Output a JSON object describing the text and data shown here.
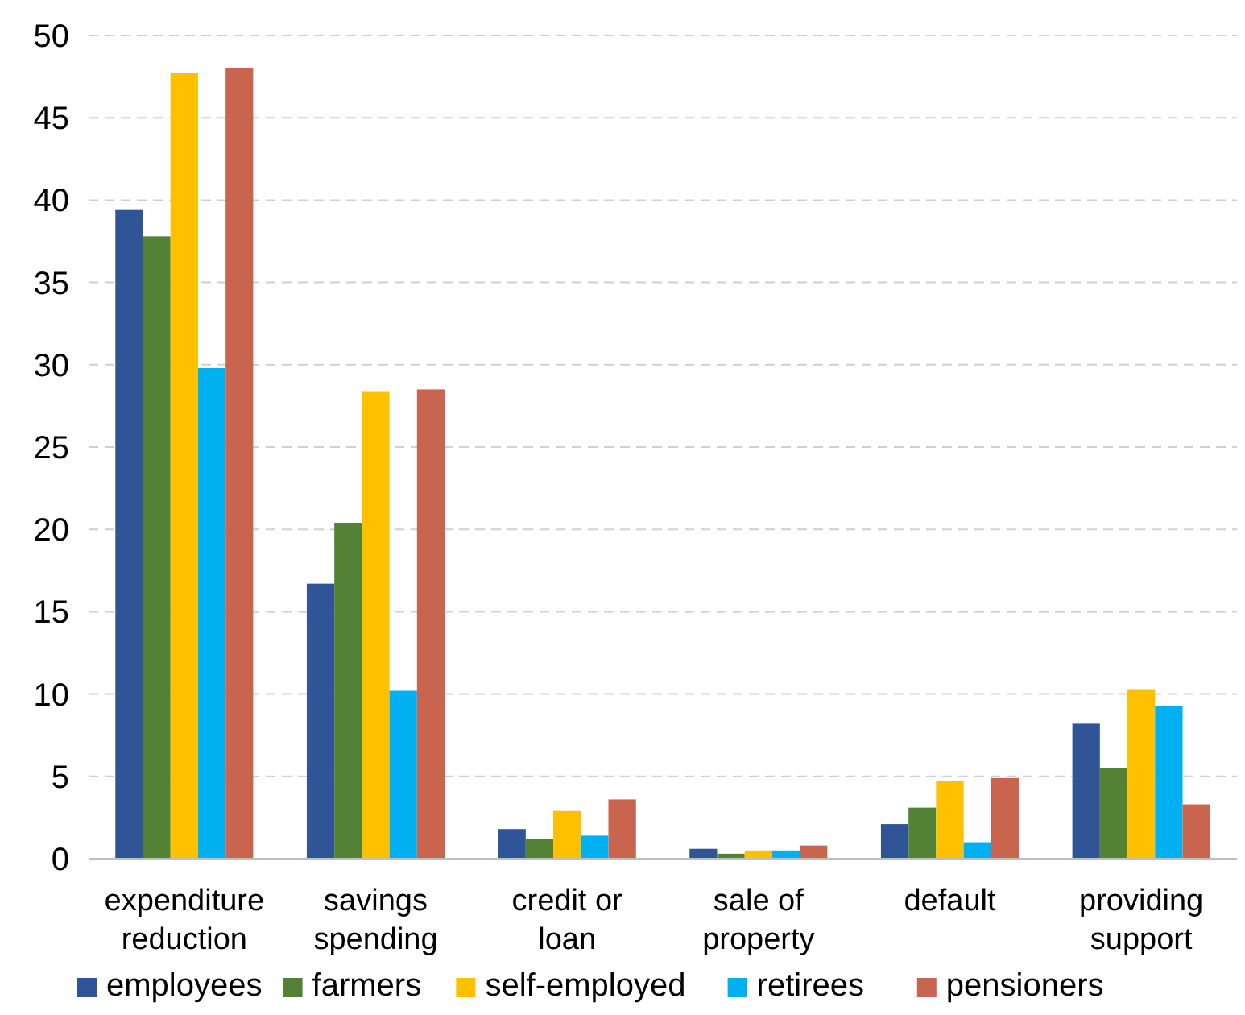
{
  "chart_data": {
    "type": "bar",
    "categories": [
      "expenditure reduction",
      "savings spending",
      "credit or loan",
      "sale of property",
      "default",
      "providing support"
    ],
    "series": [
      {
        "name": "employees",
        "color": "#2f5597",
        "values": [
          39.4,
          16.7,
          1.8,
          0.6,
          2.1,
          8.2
        ]
      },
      {
        "name": "farmers",
        "color": "#548235",
        "values": [
          37.8,
          20.4,
          1.2,
          0.3,
          3.1,
          5.5
        ]
      },
      {
        "name": "self-employed",
        "color": "#ffc000",
        "values": [
          47.7,
          28.4,
          2.9,
          0.5,
          4.7,
          10.3
        ]
      },
      {
        "name": "retirees",
        "color": "#00b0f0",
        "values": [
          29.8,
          10.2,
          1.4,
          0.5,
          1.0,
          9.3
        ]
      },
      {
        "name": "pensioners",
        "color": "#c9654f",
        "values": [
          48.0,
          28.5,
          3.6,
          0.8,
          4.9,
          3.3
        ]
      }
    ],
    "ylim": [
      0,
      50
    ],
    "yticks": [
      0,
      5,
      10,
      15,
      20,
      25,
      30,
      35,
      40,
      45,
      50
    ],
    "grid": "y",
    "legend": "bottom"
  }
}
